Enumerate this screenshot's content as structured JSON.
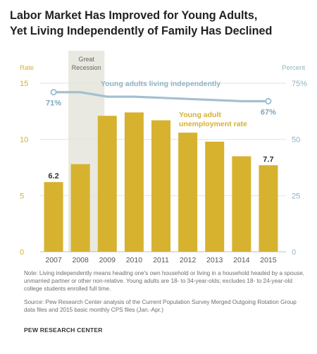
{
  "header": {
    "title_line1": "Labor Market Has Improved for Young Adults,",
    "title_line2": "Yet Living Independently of Family Has Declined"
  },
  "chart_data": {
    "type": "bar",
    "categories": [
      "2007",
      "2008",
      "2009",
      "2010",
      "2011",
      "2012",
      "2013",
      "2014",
      "2015"
    ],
    "bar_series": {
      "name": "Young adult unemployment rate",
      "values": [
        6.2,
        7.8,
        12.1,
        12.4,
        11.7,
        10.6,
        9.8,
        8.5,
        7.7
      ],
      "color": "#d6b22f"
    },
    "line_series": {
      "name": "Young adults living independently",
      "values": [
        71,
        71,
        69,
        69,
        68.5,
        68,
        67.5,
        67,
        67
      ],
      "color": "#a3c0d0"
    },
    "left_axis": {
      "label": "Rate",
      "ticks": [
        "0",
        "5",
        "10",
        "15"
      ],
      "range": [
        0,
        15
      ],
      "color": "#d6b22f"
    },
    "right_axis": {
      "label": "Percent",
      "ticks": [
        "0",
        "25",
        "50",
        "75%"
      ],
      "range": [
        0,
        75
      ],
      "color": "#8fb2c4"
    },
    "data_labels": {
      "bar_first": "6.2",
      "bar_last": "7.7",
      "line_first": "71%",
      "line_last": "67%"
    },
    "series_labels": {
      "line": "Young adults living independently",
      "bar_line1": "Young adult",
      "bar_line2": "unemployment rate"
    },
    "recession": {
      "label_line1": "Great",
      "label_line2": "Recession",
      "start_year": "2008",
      "end_year": "2009",
      "color": "#e9e9e1"
    },
    "grid": true
  },
  "notes": {
    "note": "Note: Living independently means heading one's own household or living in a household headed by a spouse, unmarried partner or other non-relative. Young adults are 18- to 34-year-olds; excludes 18- to 24-year-old college students enrolled full time.",
    "source": "Source: Pew Research Center analysis of the Current Population Survey Merged Outgoing Rotation Group data files and 2015 basic monthly CPS files (Jan.-Apr.)"
  },
  "footer": {
    "org": "PEW RESEARCH CENTER"
  }
}
